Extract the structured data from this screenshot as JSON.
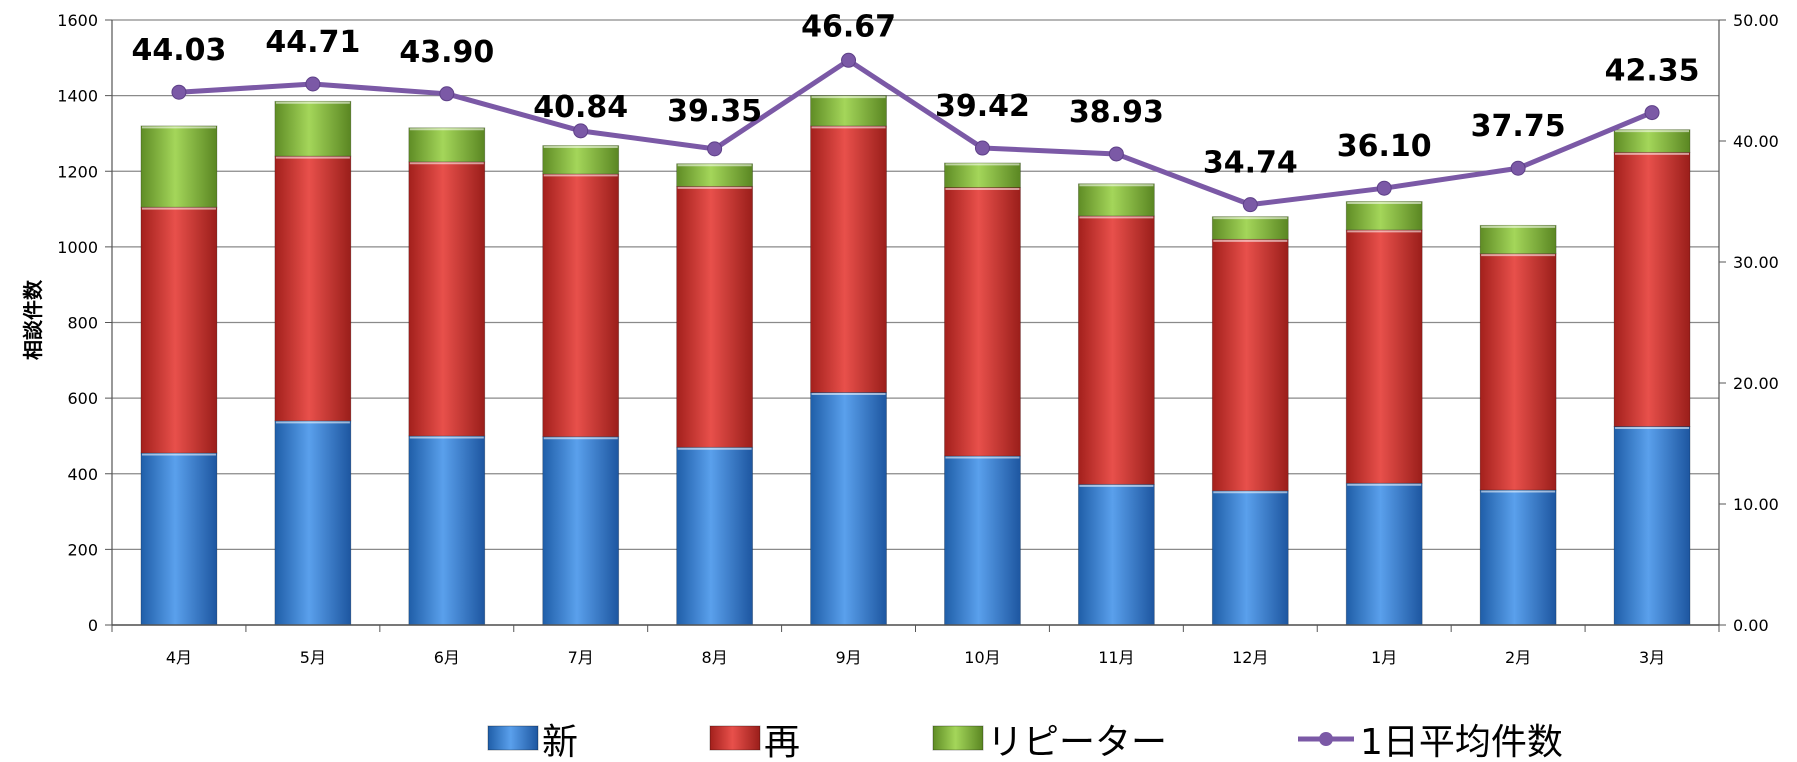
{
  "chart_data": {
    "type": "bar",
    "stacked": true,
    "categories": [
      "4月",
      "5月",
      "6月",
      "7月",
      "8月",
      "9月",
      "10月",
      "11月",
      "12月",
      "1月",
      "2月",
      "3月"
    ],
    "series": [
      {
        "name": "新",
        "type": "bar",
        "axis": "left",
        "color": "#3f83d6",
        "values": [
          455,
          540,
          500,
          498,
          470,
          615,
          447,
          372,
          355,
          375,
          357,
          525
        ]
      },
      {
        "name": "再",
        "type": "bar",
        "axis": "left",
        "color": "#d83a36",
        "values": [
          650,
          700,
          725,
          695,
          690,
          705,
          710,
          710,
          665,
          670,
          625,
          725
        ]
      },
      {
        "name": "リピーター",
        "type": "bar",
        "axis": "left",
        "color": "#8cc63f",
        "values": [
          215,
          145,
          90,
          75,
          60,
          80,
          65,
          85,
          60,
          75,
          75,
          60
        ]
      },
      {
        "name": "1日平均件数",
        "type": "line",
        "axis": "right",
        "color": "#7b59a6",
        "values": [
          44.03,
          44.71,
          43.9,
          40.84,
          39.35,
          46.67,
          39.42,
          38.93,
          34.74,
          36.1,
          37.75,
          42.35
        ]
      }
    ],
    "data_labels": [
      "44.03",
      "44.71",
      "43.90",
      "40.84",
      "39.35",
      "46.67",
      "39.42",
      "38.93",
      "34.74",
      "36.10",
      "37.75",
      "42.35"
    ],
    "ylabel": "相談件数",
    "ylim": [
      0,
      1600
    ],
    "y_ticks": [
      "0",
      "200",
      "400",
      "600",
      "800",
      "1000",
      "1200",
      "1400",
      "1600"
    ],
    "y2lim": [
      0,
      50
    ],
    "y2_ticks": [
      "0.00",
      "10.00",
      "20.00",
      "30.00",
      "40.00",
      "50.00"
    ],
    "grid": true,
    "legend_position": "bottom"
  }
}
